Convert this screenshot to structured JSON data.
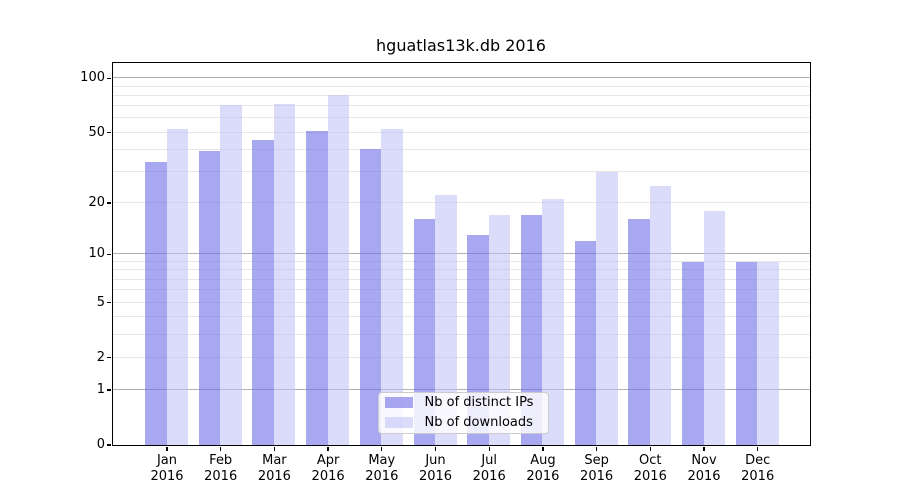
{
  "title": "hguatlas13k.db 2016",
  "chart_data": {
    "type": "bar",
    "title": "hguatlas13k.db 2016",
    "categories": [
      "Jan",
      "Feb",
      "Mar",
      "Apr",
      "May",
      "Jun",
      "Jul",
      "Aug",
      "Sep",
      "Oct",
      "Nov",
      "Dec"
    ],
    "year": "2016",
    "series": [
      {
        "name": "Nb of distinct IPs",
        "color": "#6e6ee6",
        "alpha": 0.6,
        "values": [
          34,
          39,
          45,
          51,
          40,
          16,
          13,
          17,
          12,
          16,
          9,
          9
        ]
      },
      {
        "name": "Nb of downloads",
        "color": "#bebef5",
        "alpha": 0.55,
        "values": [
          52,
          71,
          72,
          80,
          52,
          22,
          17,
          21,
          30,
          25,
          18,
          9
        ]
      }
    ],
    "xlabel": "",
    "ylabel": "",
    "y_scale": "log10(value+1)",
    "y_ticks": [
      100,
      50,
      20,
      10,
      5,
      2,
      1,
      0
    ],
    "y_major_gridlines": [
      1,
      10,
      100
    ],
    "y_minor_gridlines": [
      2,
      3,
      4,
      5,
      6,
      7,
      8,
      9,
      20,
      30,
      40,
      50,
      60,
      70,
      80,
      90
    ],
    "ylim": [
      0,
      121
    ],
    "grid": true,
    "legend_position": "lower-center",
    "colors": {
      "major_grid": "#b2b2b2",
      "minor_grid": "#e7e7e7",
      "axis": "#000000",
      "background": "#ffffff"
    }
  }
}
